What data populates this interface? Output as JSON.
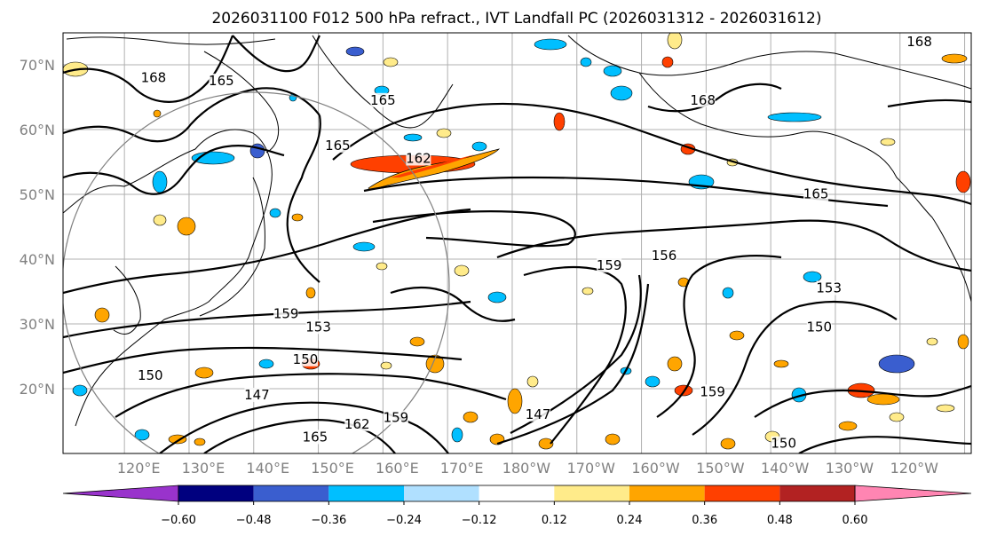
{
  "title": "2026031100 F012 500 hPa refract., IVT Landfall PC (2026031312 - 2026031612)",
  "lat_ticks": [
    "70°N",
    "60°N",
    "50°N",
    "40°N",
    "30°N",
    "20°N"
  ],
  "lon_ticks": [
    "120°E",
    "130°E",
    "140°E",
    "150°E",
    "160°E",
    "170°E",
    "180°W",
    "170°W",
    "160°W",
    "150°W",
    "140°W",
    "130°W",
    "120°W"
  ],
  "colorbar": {
    "ticks": [
      "−0.60",
      "−0.48",
      "−0.36",
      "−0.24",
      "−0.12",
      "0.12",
      "0.24",
      "0.36",
      "0.48",
      "0.60"
    ],
    "colors": [
      "#9933cc",
      "#00007f",
      "#3a5ecf",
      "#00bfff",
      "#b0e0ff",
      "#ffffff",
      "#ffeb8a",
      "#ffa500",
      "#ff4000",
      "#b22222",
      "#ff85b2"
    ]
  },
  "contour_labels": [
    {
      "text": "168",
      "lon": 124.5,
      "lat": 67.5
    },
    {
      "text": "165",
      "lon": 135,
      "lat": 67
    },
    {
      "text": "165",
      "lon": 160,
      "lat": 64
    },
    {
      "text": "165",
      "lon": 153,
      "lat": 57
    },
    {
      "text": "162",
      "lon": 165.5,
      "lat": 55
    },
    {
      "text": "168",
      "lon": 243,
      "lat": 73
    },
    {
      "text": "168",
      "lon": 209.5,
      "lat": 64
    },
    {
      "text": "165",
      "lon": 227,
      "lat": 49.5
    },
    {
      "text": "159",
      "lon": 195,
      "lat": 38.5
    },
    {
      "text": "156",
      "lon": 203.5,
      "lat": 40
    },
    {
      "text": "153",
      "lon": 229,
      "lat": 35
    },
    {
      "text": "150",
      "lon": 227.5,
      "lat": 29
    },
    {
      "text": "159",
      "lon": 145,
      "lat": 31
    },
    {
      "text": "153",
      "lon": 150,
      "lat": 29
    },
    {
      "text": "150",
      "lon": 148,
      "lat": 24
    },
    {
      "text": "147",
      "lon": 140.5,
      "lat": 18.5
    },
    {
      "text": "150",
      "lon": 124,
      "lat": 21.5
    },
    {
      "text": "165",
      "lon": 149.5,
      "lat": 12
    },
    {
      "text": "162",
      "lon": 156,
      "lat": 14
    },
    {
      "text": "159",
      "lon": 162,
      "lat": 15
    },
    {
      "text": "147",
      "lon": 184,
      "lat": 15.5
    },
    {
      "text": "159",
      "lon": 211,
      "lat": 19
    },
    {
      "text": "150",
      "lon": 222,
      "lat": 11
    }
  ]
}
